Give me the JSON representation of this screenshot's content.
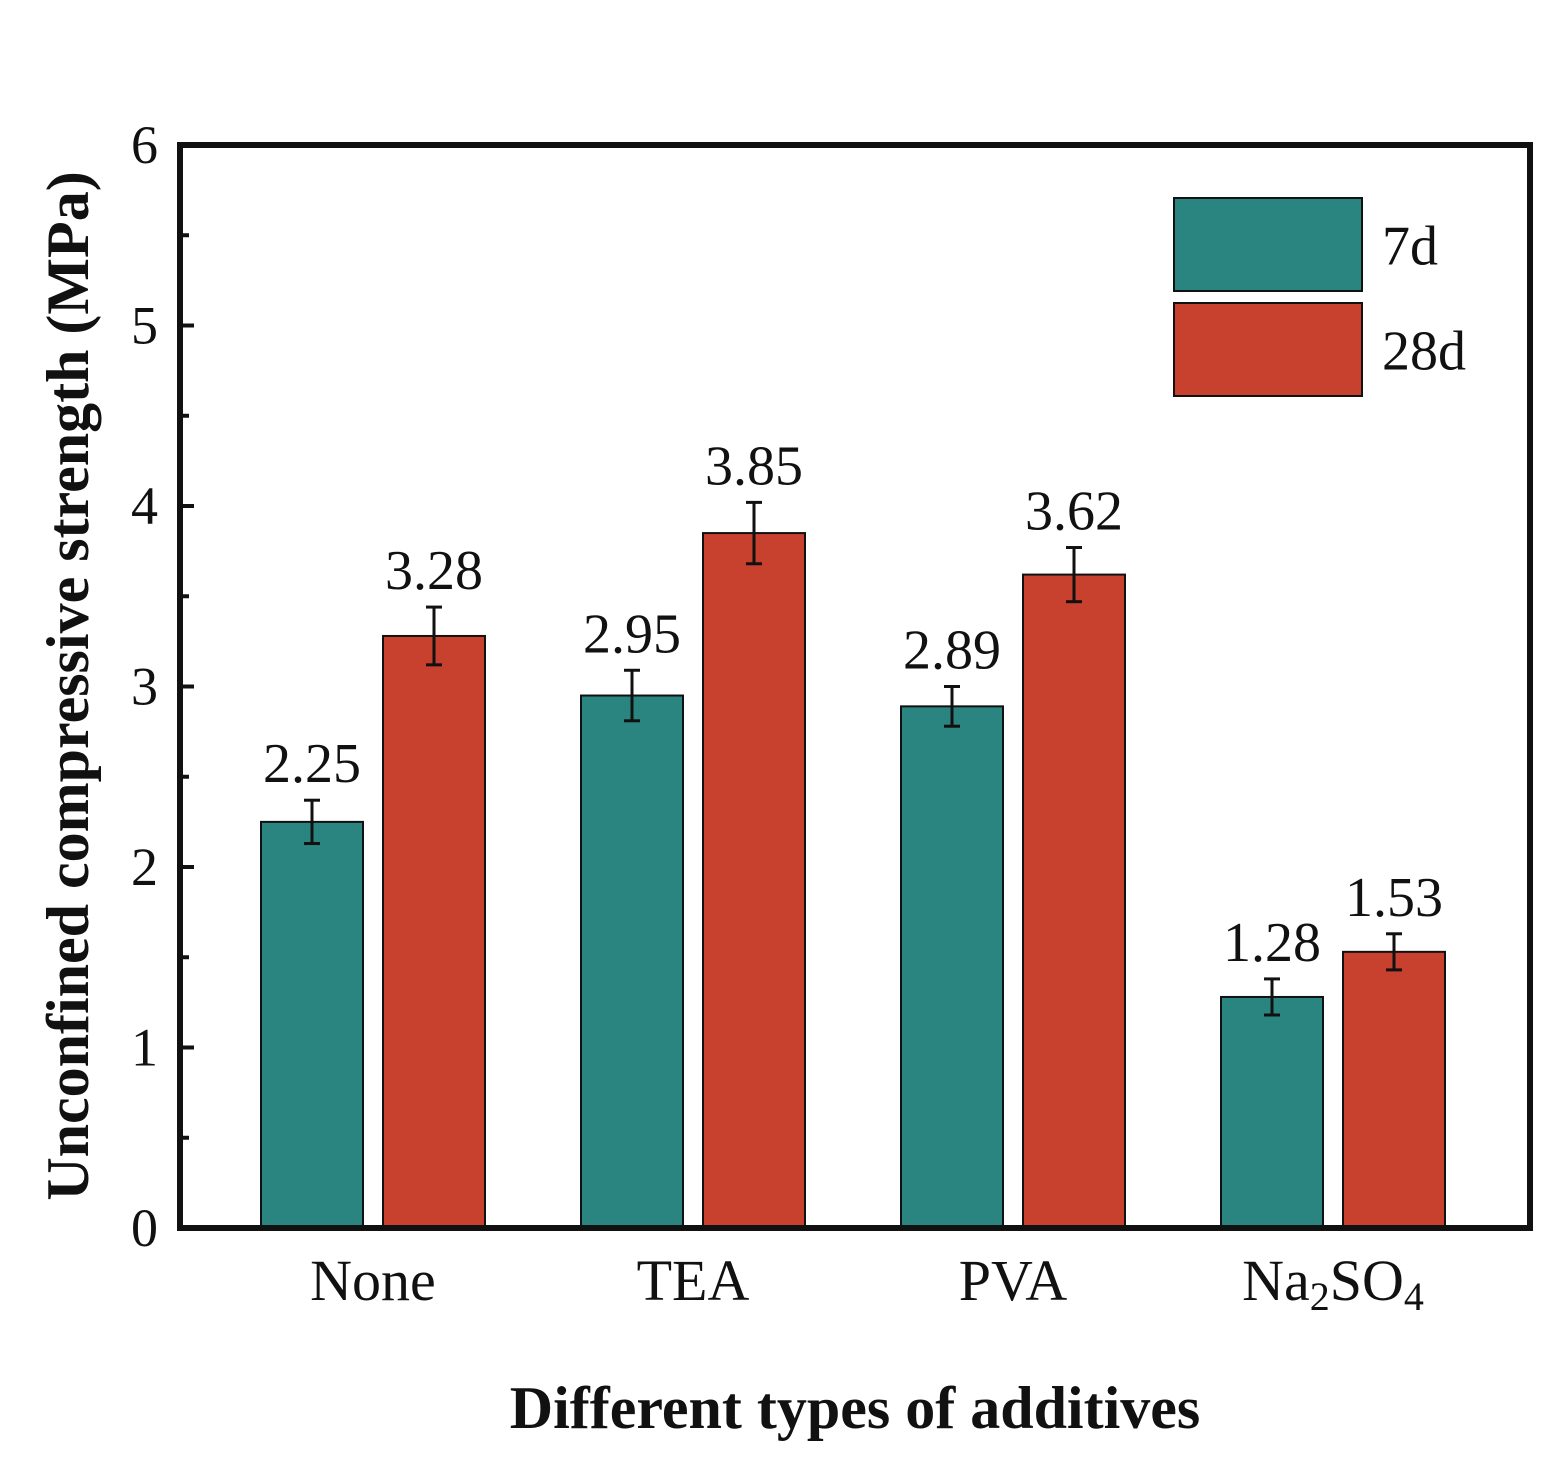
{
  "chart_data": {
    "type": "bar",
    "xlabel": "Different types of additives",
    "ylabel": "Unconfined compressive strength (MPa)",
    "ylim": [
      0,
      6
    ],
    "yticks": [
      0,
      1,
      2,
      3,
      4,
      5,
      6
    ],
    "categories": [
      {
        "main": "None",
        "parts": [
          {
            "t": "None"
          }
        ]
      },
      {
        "main": "TEA",
        "parts": [
          {
            "t": "TEA"
          }
        ]
      },
      {
        "main": "PVA",
        "parts": [
          {
            "t": "PVA"
          }
        ]
      },
      {
        "main": "Na2SO4",
        "parts": [
          {
            "t": "Na"
          },
          {
            "t": "2",
            "sub": true
          },
          {
            "t": "SO"
          },
          {
            "t": "4",
            "sub": true
          }
        ]
      }
    ],
    "series": [
      {
        "name": "7d",
        "color": "#2a8580",
        "values": [
          2.25,
          2.95,
          2.89,
          1.28
        ],
        "labels": [
          "2.25",
          "2.95",
          "2.89",
          "1.28"
        ],
        "errors": [
          0.12,
          0.14,
          0.11,
          0.1
        ]
      },
      {
        "name": "28d",
        "color": "#c8402e",
        "values": [
          3.28,
          3.85,
          3.62,
          1.53
        ],
        "labels": [
          "3.28",
          "3.85",
          "3.62",
          "1.53"
        ],
        "errors": [
          0.16,
          0.17,
          0.15,
          0.1
        ]
      }
    ],
    "legend_position": "top-right",
    "grid": false
  }
}
